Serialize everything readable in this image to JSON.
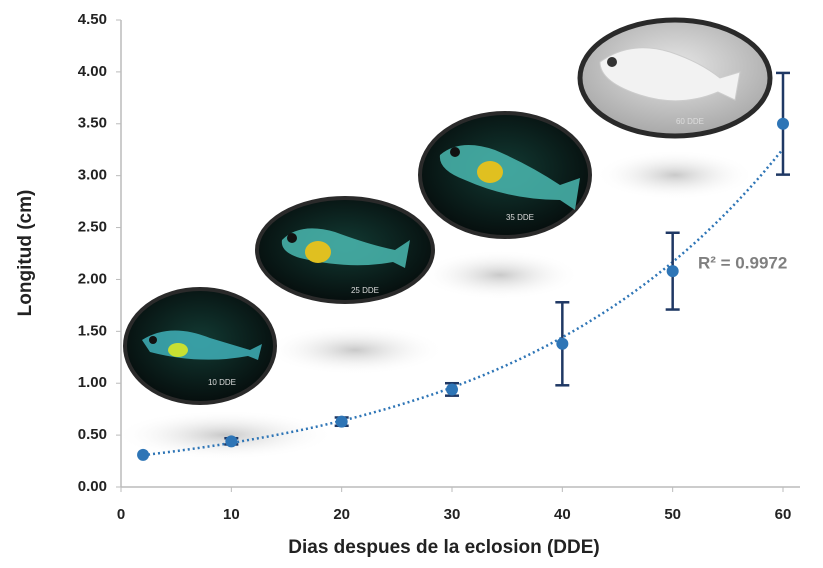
{
  "chart_data": {
    "type": "scatter",
    "x_label": "Dias despues de la eclosion (DDE)",
    "y_label": "Longitud (cm)",
    "x": [
      2,
      10,
      20,
      30,
      40,
      50,
      60
    ],
    "values": [
      0.31,
      0.44,
      0.63,
      0.94,
      1.38,
      2.08,
      3.5
    ],
    "errors": [
      0,
      0.03,
      0.04,
      0.06,
      0.4,
      0.37,
      0.49
    ],
    "color": "#2e75b6",
    "error_color": "#1f3864",
    "trendline": "exponential",
    "trendline_label": "R² = 0.9972",
    "image_labels": [
      "10 DDE",
      "25 DDE",
      "35 DDE",
      "60 DDE"
    ],
    "xlim": [
      0,
      60
    ],
    "xticks": [
      0,
      10,
      20,
      30,
      40,
      50,
      60
    ],
    "ylim": [
      0,
      4.5
    ],
    "yticks": [
      {
        "value": 0,
        "label": "0.00"
      },
      {
        "value": 0.5,
        "label": "0.50"
      },
      {
        "value": 1,
        "label": "1.00"
      },
      {
        "value": 1.5,
        "label": "1.50"
      },
      {
        "value": 2,
        "label": "2.00"
      },
      {
        "value": 2.5,
        "label": "2.50"
      },
      {
        "value": 3,
        "label": "3.00"
      },
      {
        "value": 3.5,
        "label": "3.50"
      },
      {
        "value": 4,
        "label": "4.00"
      },
      {
        "value": 4.5,
        "label": "4.50"
      }
    ],
    "grid": false
  }
}
